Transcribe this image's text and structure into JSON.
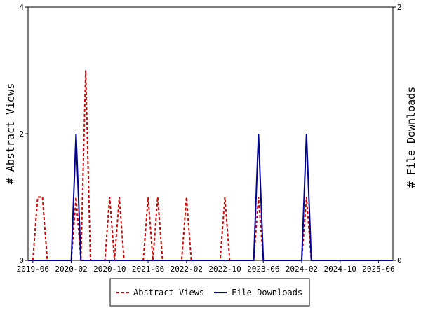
{
  "chart_data": {
    "type": "line",
    "ylabel_left": "# Abstract Views",
    "ylabel_right": "# File Downloads",
    "x_range": [
      "2019-05-01",
      "2025-09-01"
    ],
    "x_ticks": [
      "2019-06",
      "2020-02",
      "2020-10",
      "2021-06",
      "2022-02",
      "2022-10",
      "2023-06",
      "2024-02",
      "2024-10",
      "2025-06"
    ],
    "y_left": {
      "min": 0,
      "max": 4,
      "ticks": [
        "0",
        "2",
        "4"
      ]
    },
    "y_right": {
      "min": 0,
      "max": 2,
      "ticks": [
        "0",
        "2"
      ]
    },
    "series": [
      {
        "name": "Abstract Views",
        "axis": "left",
        "color": "#cc0000",
        "dash": "dashed",
        "points": [
          [
            "2019-05-01",
            0
          ],
          [
            "2019-06-01",
            0
          ],
          [
            "2019-07-01",
            1
          ],
          [
            "2019-08-01",
            1
          ],
          [
            "2019-09-01",
            0
          ],
          [
            "2020-02-01",
            0
          ],
          [
            "2020-03-01",
            1
          ],
          [
            "2020-04-01",
            0
          ],
          [
            "2020-05-01",
            3
          ],
          [
            "2020-06-01",
            0
          ],
          [
            "2020-09-01",
            0
          ],
          [
            "2020-10-01",
            1
          ],
          [
            "2020-11-01",
            0
          ],
          [
            "2020-12-01",
            1
          ],
          [
            "2021-01-01",
            0
          ],
          [
            "2021-05-01",
            0
          ],
          [
            "2021-06-01",
            1
          ],
          [
            "2021-07-01",
            0
          ],
          [
            "2021-08-01",
            1
          ],
          [
            "2021-09-01",
            0
          ],
          [
            "2022-01-01",
            0
          ],
          [
            "2022-02-01",
            1
          ],
          [
            "2022-03-01",
            0
          ],
          [
            "2022-09-01",
            0
          ],
          [
            "2022-10-01",
            1
          ],
          [
            "2022-11-01",
            0
          ],
          [
            "2023-04-01",
            0
          ],
          [
            "2023-05-01",
            1
          ],
          [
            "2023-06-01",
            0
          ],
          [
            "2024-02-01",
            0
          ],
          [
            "2024-03-01",
            1
          ],
          [
            "2024-04-01",
            0
          ],
          [
            "2025-09-01",
            0
          ]
        ]
      },
      {
        "name": "File Downloads",
        "axis": "right",
        "color": "#000099",
        "dash": "solid",
        "points": [
          [
            "2019-05-01",
            0
          ],
          [
            "2020-02-01",
            0
          ],
          [
            "2020-03-01",
            1
          ],
          [
            "2020-04-01",
            0
          ],
          [
            "2023-04-01",
            0
          ],
          [
            "2023-05-01",
            1
          ],
          [
            "2023-06-01",
            0
          ],
          [
            "2024-02-01",
            0
          ],
          [
            "2024-03-01",
            1
          ],
          [
            "2024-04-01",
            0
          ],
          [
            "2025-09-01",
            0
          ]
        ]
      }
    ],
    "grid": false,
    "legend": "bottom-center"
  }
}
